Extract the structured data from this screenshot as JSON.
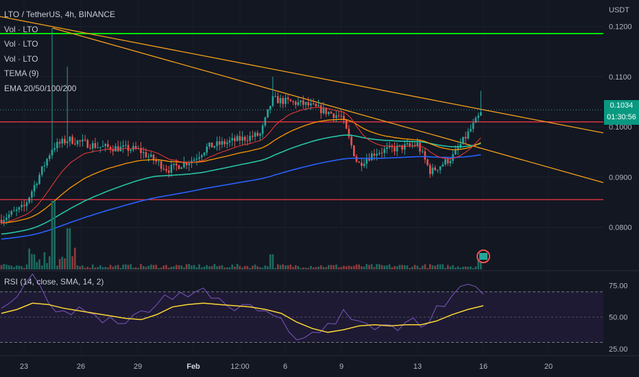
{
  "header": {
    "symbol_line": "LTO / TetherUS, 4h, BINANCE",
    "indicators": [
      "Vol · LTO",
      "Vol · LTO",
      "Vol · LTO",
      "TEMA (9)",
      "EMA 20/50/100/200"
    ],
    "currency": "USDT"
  },
  "price_badge": {
    "price": "0.1034",
    "countdown": "01:30:56",
    "color": "#089981"
  },
  "rsi_panel": {
    "label": "RSI (14, close, SMA, 14, 2)"
  },
  "colors": {
    "background": "#131722",
    "up": "#26a69a",
    "down": "#ef5350",
    "green_line": "#00e600",
    "red_line": "#f23645",
    "trend": "#f7a21b",
    "ema_red": "#e53935",
    "ema_orange": "#ff9800",
    "ema_teal": "#26c6a6",
    "ema_blue": "#2962ff",
    "rsi_line": "#7e57c2",
    "rsi_sma": "#fdd835"
  },
  "chart_data": [
    {
      "type": "candlestick",
      "title": "LTO / TetherUS, 4h, BINANCE",
      "y_unit": "USDT",
      "ylim": [
        0.0716,
        0.1242
      ],
      "y_ticks": [
        "0.0800",
        "0.0900",
        "0.1000",
        "0.1100",
        "0.1200"
      ],
      "x_ticks": [
        "23",
        "26",
        "29",
        "Feb",
        "12:00",
        "6",
        "9",
        "13",
        "16",
        "20"
      ],
      "horizontal_lines": [
        {
          "price": 0.1186,
          "color": "green"
        },
        {
          "price": 0.101,
          "color": "red"
        },
        {
          "price": 0.0855,
          "color": "red"
        }
      ],
      "trend_lines": [
        {
          "from": [
            "22",
            0.122
          ],
          "to": [
            "21",
            0.0988
          ]
        },
        {
          "from": [
            "24",
            0.1197
          ],
          "to": [
            "21",
            0.0889
          ]
        }
      ],
      "keypoints": [
        {
          "x": "22",
          "price": 0.0815
        },
        {
          "x": "23",
          "price": 0.084
        },
        {
          "x": "24",
          "price": 0.096
        },
        {
          "x": "25",
          "price": 0.0975
        },
        {
          "x": "27",
          "price": 0.096
        },
        {
          "x": "29",
          "price": 0.0955
        },
        {
          "x": "30",
          "price": 0.0915
        },
        {
          "x": "Feb",
          "price": 0.0935
        },
        {
          "x": "3",
          "price": 0.096
        },
        {
          "x": "4",
          "price": 0.0985
        },
        {
          "x": "5",
          "price": 0.1055
        },
        {
          "x": "7",
          "price": 0.1045
        },
        {
          "x": "9",
          "price": 0.102
        },
        {
          "x": "10",
          "price": 0.0925
        },
        {
          "x": "11",
          "price": 0.095
        },
        {
          "x": "13",
          "price": 0.0965
        },
        {
          "x": "14",
          "price": 0.091
        },
        {
          "x": "15",
          "price": 0.094
        },
        {
          "x": "16",
          "price": 0.1034
        }
      ],
      "last_price": 0.1034,
      "volume": {
        "spikes": [
          "24",
          "25",
          "5",
          "16"
        ]
      },
      "ema_approx": {
        "ema20": [
          0.0815,
          0.099,
          0.0945,
          0.0985,
          0.102,
          0.098,
          0.095,
          0.0965
        ],
        "ema200": [
          0.0783,
          0.0835,
          0.0865,
          0.089,
          0.0905,
          0.0915,
          0.0915,
          0.092
        ]
      }
    },
    {
      "type": "line",
      "title": "RSI (14, close, SMA, 14, 2)",
      "ylim": [
        20,
        85
      ],
      "y_ticks": [
        "25.00",
        "50.00",
        "75.00"
      ],
      "bands": [
        30,
        70
      ],
      "series": [
        {
          "values": [
            57,
            66,
            84,
            62,
            55,
            58,
            52,
            50,
            45,
            55,
            60,
            64,
            66,
            73,
            65,
            55,
            60,
            55,
            49,
            32,
            38,
            45,
            56,
            47,
            40,
            44,
            46,
            42,
            59,
            67,
            76,
            68
          ]
        },
        {
          "values": [
            53,
            56,
            61,
            60,
            57,
            55,
            53,
            51,
            49,
            48,
            52,
            58,
            60,
            61,
            60,
            59,
            58,
            56,
            53,
            46,
            41,
            38,
            40,
            43,
            44,
            43,
            44,
            44,
            47,
            52,
            56,
            59
          ]
        }
      ]
    }
  ]
}
